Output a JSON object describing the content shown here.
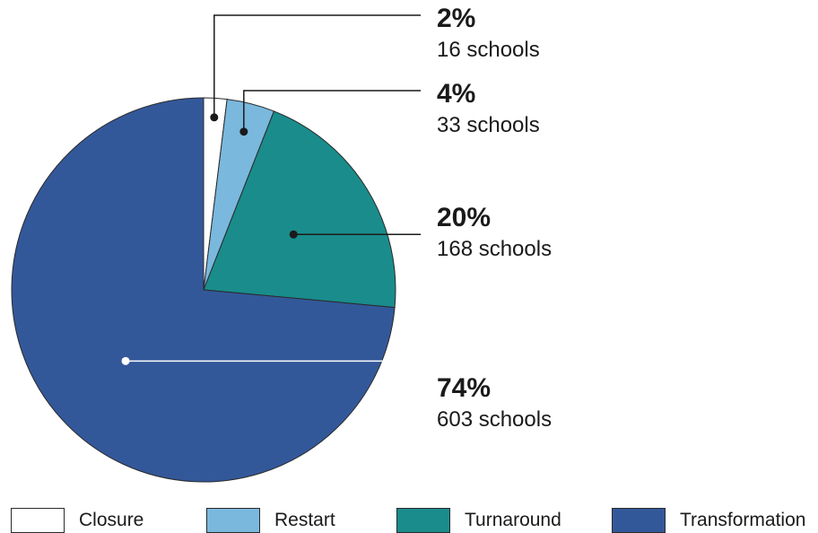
{
  "chart_data": {
    "type": "pie",
    "slices": [
      {
        "name": "Closure",
        "percent_label": "2%",
        "count_label": "16 schools",
        "value": 16,
        "color": "#ffffff"
      },
      {
        "name": "Restart",
        "percent_label": "4%",
        "count_label": "33 schools",
        "value": 33,
        "color": "#7ab8de"
      },
      {
        "name": "Turnaround",
        "percent_label": "20%",
        "count_label": "168 schools",
        "value": 168,
        "color": "#1a8c8c"
      },
      {
        "name": "Transformation",
        "percent_label": "74%",
        "count_label": "603 schools",
        "value": 603,
        "color": "#33589a"
      }
    ],
    "legend_position": "bottom",
    "start_angle": "12 o'clock",
    "direction": "clockwise"
  }
}
